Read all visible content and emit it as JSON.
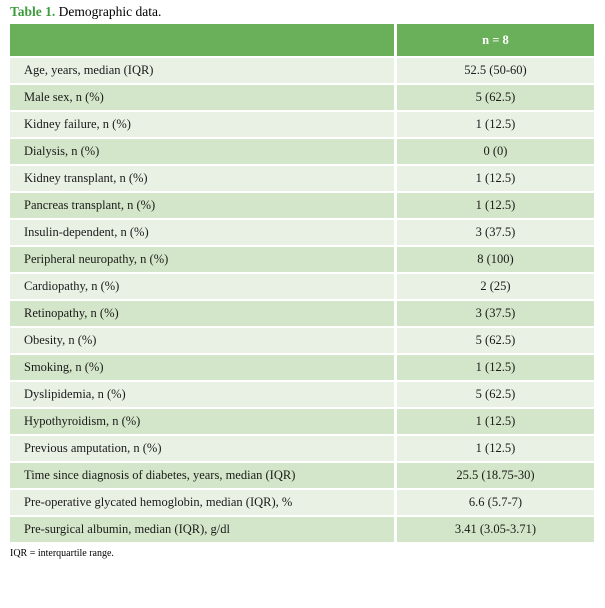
{
  "caption": {
    "table_label": "Table 1.",
    "caption_text": "Demographic data."
  },
  "table": {
    "column_header": "n = 8",
    "rows": [
      {
        "label": "Age, years, median (IQR)",
        "value": "52.5 (50-60)"
      },
      {
        "label": "Male sex, n (%)",
        "value": "5 (62.5)"
      },
      {
        "label": "Kidney failure, n (%)",
        "value": "1 (12.5)"
      },
      {
        "label": "Dialysis, n (%)",
        "value": "0 (0)"
      },
      {
        "label": "Kidney transplant, n (%)",
        "value": "1 (12.5)"
      },
      {
        "label": "Pancreas transplant, n (%)",
        "value": "1 (12.5)"
      },
      {
        "label": "Insulin-dependent, n (%)",
        "value": "3 (37.5)"
      },
      {
        "label": "Peripheral neuropathy, n (%)",
        "value": "8 (100)"
      },
      {
        "label": "Cardiopathy, n (%)",
        "value": "2 (25)"
      },
      {
        "label": "Retinopathy, n (%)",
        "value": "3 (37.5)"
      },
      {
        "label": "Obesity, n (%)",
        "value": "5 (62.5)"
      },
      {
        "label": "Smoking, n (%)",
        "value": "1 (12.5)"
      },
      {
        "label": "Dyslipidemia, n (%)",
        "value": "5 (62.5)"
      },
      {
        "label": "Hypothyroidism, n (%)",
        "value": "1 (12.5)"
      },
      {
        "label": "Previous amputation, n (%)",
        "value": "1 (12.5)"
      },
      {
        "label": "Time since diagnosis of diabetes, years, median (IQR)",
        "value": "25.5 (18.75-30)"
      },
      {
        "label": "Pre-operative glycated hemoglobin, median (IQR), %",
        "value": "6.6 (5.7-7)"
      },
      {
        "label": "Pre-surgical albumin, median (IQR), g/dl",
        "value": "3.41 (3.05-3.71)"
      }
    ]
  },
  "footnote": "IQR = interquartile range.",
  "colors": {
    "header_bg": "#6aaf5a",
    "header_text": "#ffffff",
    "row_light": "#e9f1e4",
    "row_dark": "#d4e6c9",
    "title_green": "#3f9b3f"
  }
}
